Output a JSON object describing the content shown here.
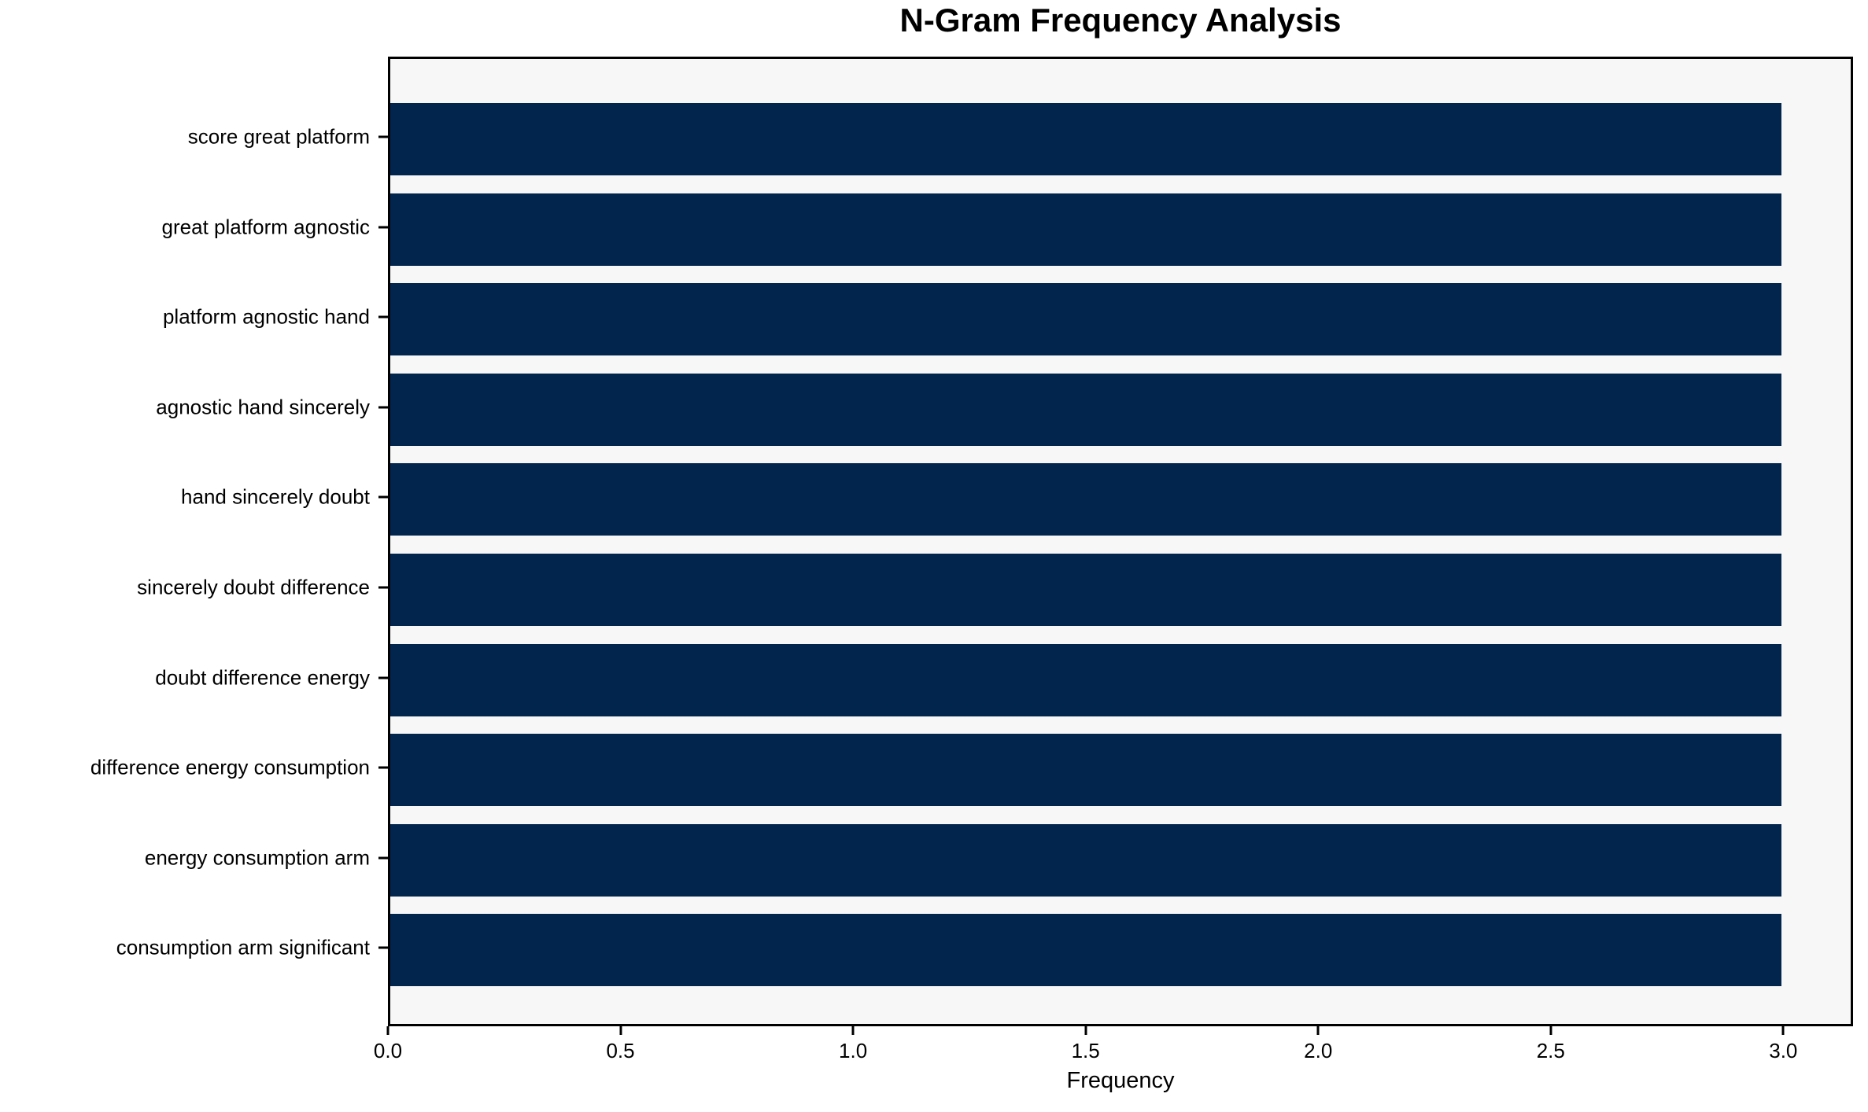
{
  "chart_data": {
    "type": "bar",
    "orientation": "horizontal",
    "title": "N-Gram Frequency Analysis",
    "xlabel": "Frequency",
    "ylabel": "",
    "categories": [
      "score great platform",
      "great platform agnostic",
      "platform agnostic hand",
      "agnostic hand sincerely",
      "hand sincerely doubt",
      "sincerely doubt difference",
      "doubt difference energy",
      "difference energy consumption",
      "energy consumption arm",
      "consumption arm significant"
    ],
    "values": [
      3,
      3,
      3,
      3,
      3,
      3,
      3,
      3,
      3,
      3
    ],
    "xlim": [
      0,
      3.15
    ],
    "xticks": [
      0.0,
      0.5,
      1.0,
      1.5,
      2.0,
      2.5,
      3.0
    ],
    "grid": false,
    "legend": null,
    "colors": {
      "bar": "#02254e",
      "plot_background": "#f7f7f7",
      "figure_background": "#ffffff",
      "text": "#000000"
    }
  }
}
